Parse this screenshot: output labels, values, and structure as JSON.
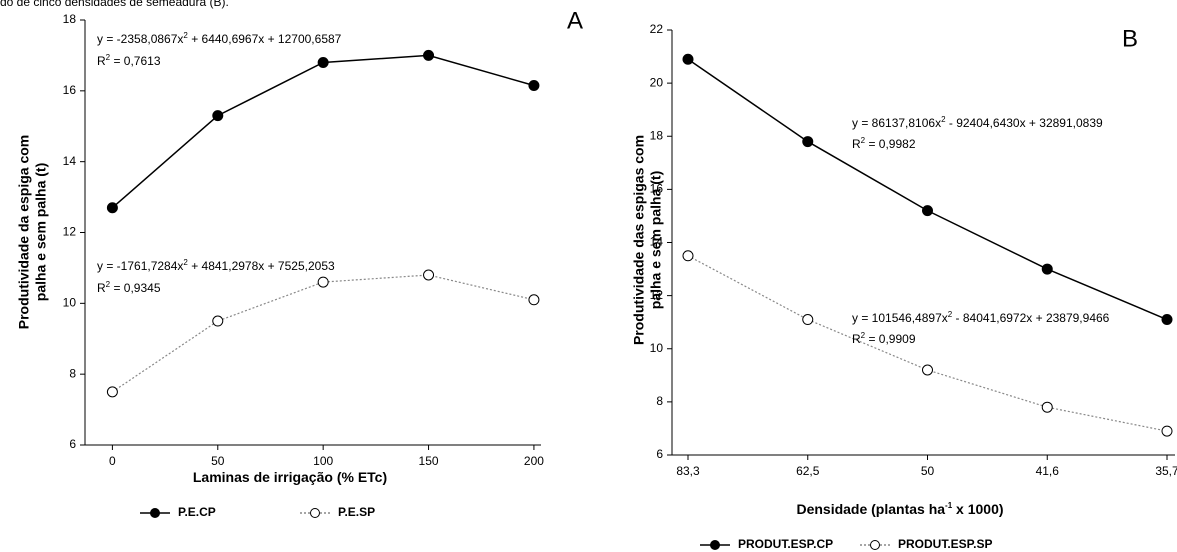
{
  "header_text": "do de cinco densidades de semeadura (B).",
  "chart_data": [
    {
      "type": "line",
      "panel_label": "A",
      "x_label": {
        "parts": [
          "Laminas de irrigação (% ETc)"
        ]
      },
      "y_label": [
        "Produtividade da espiga com",
        "palha e sem palha (t)"
      ],
      "x": [
        0,
        50,
        100,
        150,
        200
      ],
      "xlim": [
        -13,
        210
      ],
      "xticks": [
        0,
        50,
        100,
        150,
        200
      ],
      "ylim": [
        6,
        18
      ],
      "yticks": [
        6,
        8,
        10,
        12,
        14,
        16,
        18
      ],
      "series": [
        {
          "name": "P.E.CP",
          "color": "#000000",
          "line_style": "solid",
          "marker": "filled",
          "values": [
            12.7,
            15.3,
            16.8,
            17.0,
            16.15
          ]
        },
        {
          "name": "P.E.SP",
          "color": "#888888",
          "line_style": "dotted",
          "marker": "hollow",
          "values": [
            7.5,
            9.5,
            10.6,
            10.8,
            10.1
          ]
        }
      ],
      "annotations": [
        {
          "parts": [
            "y = -2358,0867x",
            "2",
            " + 6440,6967x + 12700,6587"
          ]
        },
        {
          "parts": [
            "R",
            "2",
            " = 0,7613"
          ]
        },
        {
          "parts": [
            "y = -1761,7284x",
            "2",
            " + 4841,2978x + 7525,2053"
          ]
        },
        {
          "parts": [
            "R",
            "2",
            " = 0,9345"
          ]
        }
      ]
    },
    {
      "type": "line",
      "panel_label": "B",
      "x_label": {
        "parts": [
          "Densidade (plantas ha",
          "-1",
          " x 1000)"
        ]
      },
      "y_label": [
        "Produtividade das espigas com",
        "palha e sem palha (t)"
      ],
      "categories": [
        "83,3",
        "62,5",
        "50",
        "41,6",
        "35,7"
      ],
      "ylim": [
        6,
        22
      ],
      "yticks": [
        6,
        8,
        10,
        12,
        14,
        16,
        18,
        20,
        22
      ],
      "series": [
        {
          "name": "PRODUT.ESP.CP",
          "color": "#000000",
          "line_style": "solid",
          "marker": "filled",
          "values": [
            20.9,
            17.8,
            15.2,
            13.0,
            11.1
          ]
        },
        {
          "name": "PRODUT.ESP.SP",
          "color": "#888888",
          "line_style": "dotted",
          "marker": "hollow",
          "values": [
            13.5,
            11.1,
            9.2,
            7.8,
            6.9
          ]
        }
      ],
      "annotations": [
        {
          "parts": [
            "y = 86137,8106x",
            "2",
            " - 92404,6430x + 32891,0839"
          ]
        },
        {
          "parts": [
            "R",
            "2",
            " = 0,9982"
          ]
        },
        {
          "parts": [
            "y = 101546,4897x",
            "2",
            " - 84041,6972x + 23879,9466"
          ]
        },
        {
          "parts": [
            "R",
            "2",
            " = 0,9909"
          ]
        }
      ]
    }
  ]
}
